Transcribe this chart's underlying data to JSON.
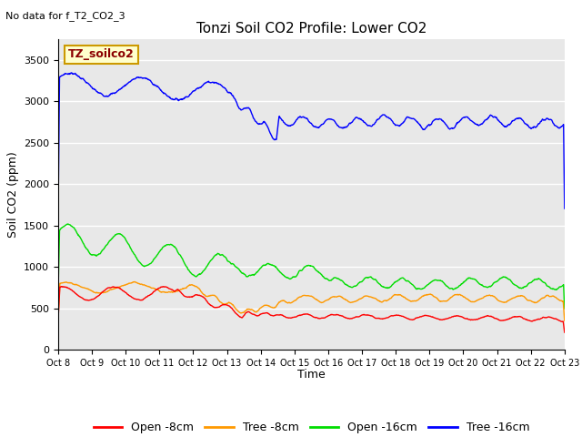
{
  "title": "Tonzi Soil CO2 Profile: Lower CO2",
  "subtitle": "No data for f_T2_CO2_3",
  "ylabel": "Soil CO2 (ppm)",
  "xlabel": "Time",
  "ylim": [
    0,
    3750
  ],
  "yticks": [
    0,
    500,
    1000,
    1500,
    2000,
    2500,
    3000,
    3500
  ],
  "xtick_labels": [
    "Oct 8",
    "Oct 9",
    "Oct 10",
    "Oct 11",
    "Oct 12",
    "Oct 13",
    "Oct 14",
    "Oct 15",
    "Oct 16",
    "Oct 17",
    "Oct 18",
    "Oct 19",
    "Oct 20",
    "Oct 21",
    "Oct 22",
    "Oct 23"
  ],
  "colors": {
    "open_8cm": "#ff0000",
    "tree_8cm": "#ff9900",
    "open_16cm": "#00dd00",
    "tree_16cm": "#0000ff"
  },
  "legend_labels": [
    "Open -8cm",
    "Tree -8cm",
    "Open -16cm",
    "Tree -16cm"
  ],
  "bg_color": "#e8e8e8",
  "annotation_box": "TZ_soilco2",
  "annotation_box_color": "#ffffcc",
  "annotation_box_border": "#cc9900"
}
